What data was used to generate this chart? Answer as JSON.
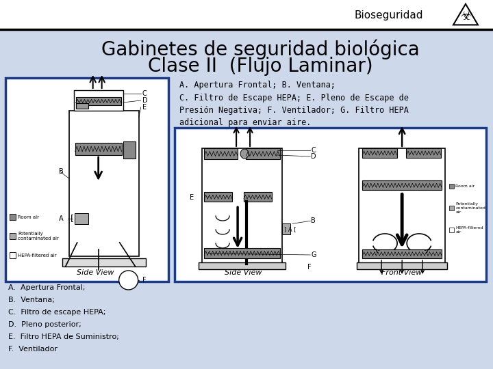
{
  "bg_color": "#cdd8ea",
  "header_bg": "#ffffff",
  "header_text": "Bioseguridad",
  "title_line1": "Gabinetes de seguridad biológica",
  "title_line2": "Clase II  (Flujo Laminar)",
  "title_color": "#000000",
  "description_text": "A. Apertura Frontal; B. Ventana;\nC. Filtro de Escape HEPA; E. Pleno de Escape de\nPresión Negativa; F. Ventilador; G. Filtro HEPA\nadicional para enviar aire.",
  "legend_items": [
    "A.  Apertura Frontal;",
    "B.  Ventana;",
    "C.  Filtro de escape HEPA;",
    "D.  Pleno posterior;",
    "E.  Filtro HEPA de Suministro;",
    "F.  Ventilador"
  ],
  "left_box_border": "#1a3a8c",
  "right_box_border": "#1a3a8c",
  "text_color": "#000000"
}
